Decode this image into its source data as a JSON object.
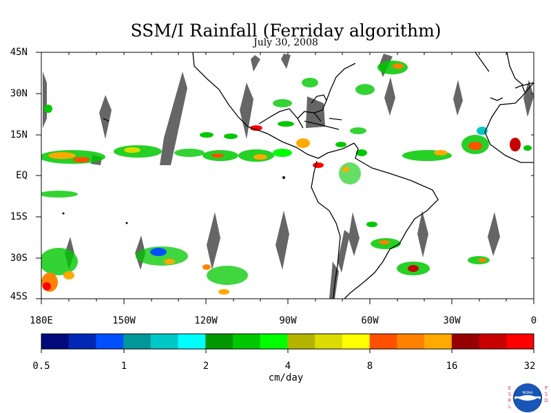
{
  "title": "SSM/I Rainfall (Ferriday algorithm)",
  "subtitle": "July 30, 2008",
  "lat_labels": [
    "45N",
    "30N",
    "15N",
    "EQ",
    "15S",
    "30S",
    "45S"
  ],
  "lon_labels": [
    "180E",
    "150W",
    "120W",
    "90W",
    "60W",
    "30W",
    "0"
  ],
  "colorbar": {
    "colors": [
      "#000a7a",
      "#0028b4",
      "#0050ff",
      "#00969a",
      "#00c8c8",
      "#00ffff",
      "#009600",
      "#00c800",
      "#00ff00",
      "#b4b400",
      "#dcdc00",
      "#ffff00",
      "#ff5000",
      "#ff8200",
      "#ffaa00",
      "#960000",
      "#c80000",
      "#ff0000"
    ],
    "tick_labels": [
      "0.5",
      "1",
      "2",
      "4",
      "8",
      "16",
      "32"
    ],
    "units": "cm/day"
  },
  "logo": {
    "left_letters": "ESRL",
    "right_letters": "PSD",
    "emblem_text": "NOAA"
  }
}
